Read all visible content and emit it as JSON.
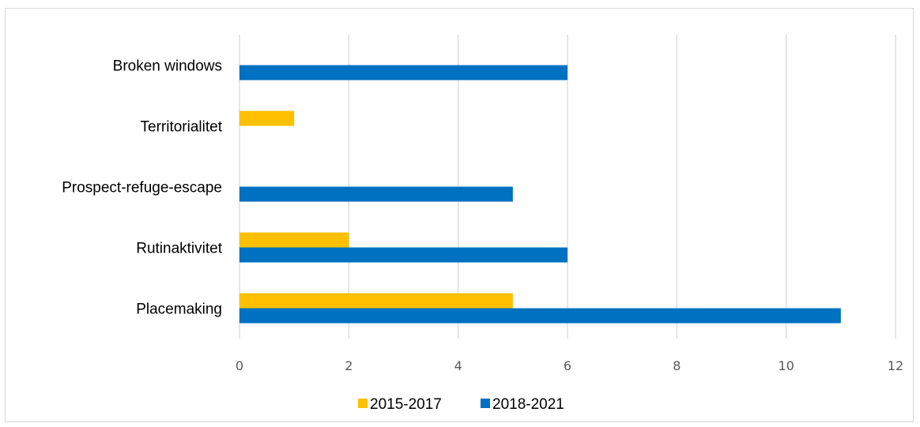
{
  "chart_data": {
    "type": "bar",
    "orientation": "horizontal",
    "categories": [
      "Broken windows",
      "Territorialitet",
      "Prospect-refuge-escape",
      "Rutinaktivitet",
      "Placemaking"
    ],
    "series": [
      {
        "name": "2015-2017",
        "color": "#FFC000",
        "values": [
          0,
          1,
          0,
          2,
          5
        ]
      },
      {
        "name": "2018-2021",
        "color": "#0070C0",
        "values": [
          6,
          0,
          5,
          6,
          11
        ]
      }
    ],
    "xlim": [
      0,
      12
    ],
    "xticks": [
      "0",
      "2",
      "4",
      "6",
      "8",
      "10",
      "12"
    ],
    "grid": true,
    "legend_position": "bottom"
  }
}
